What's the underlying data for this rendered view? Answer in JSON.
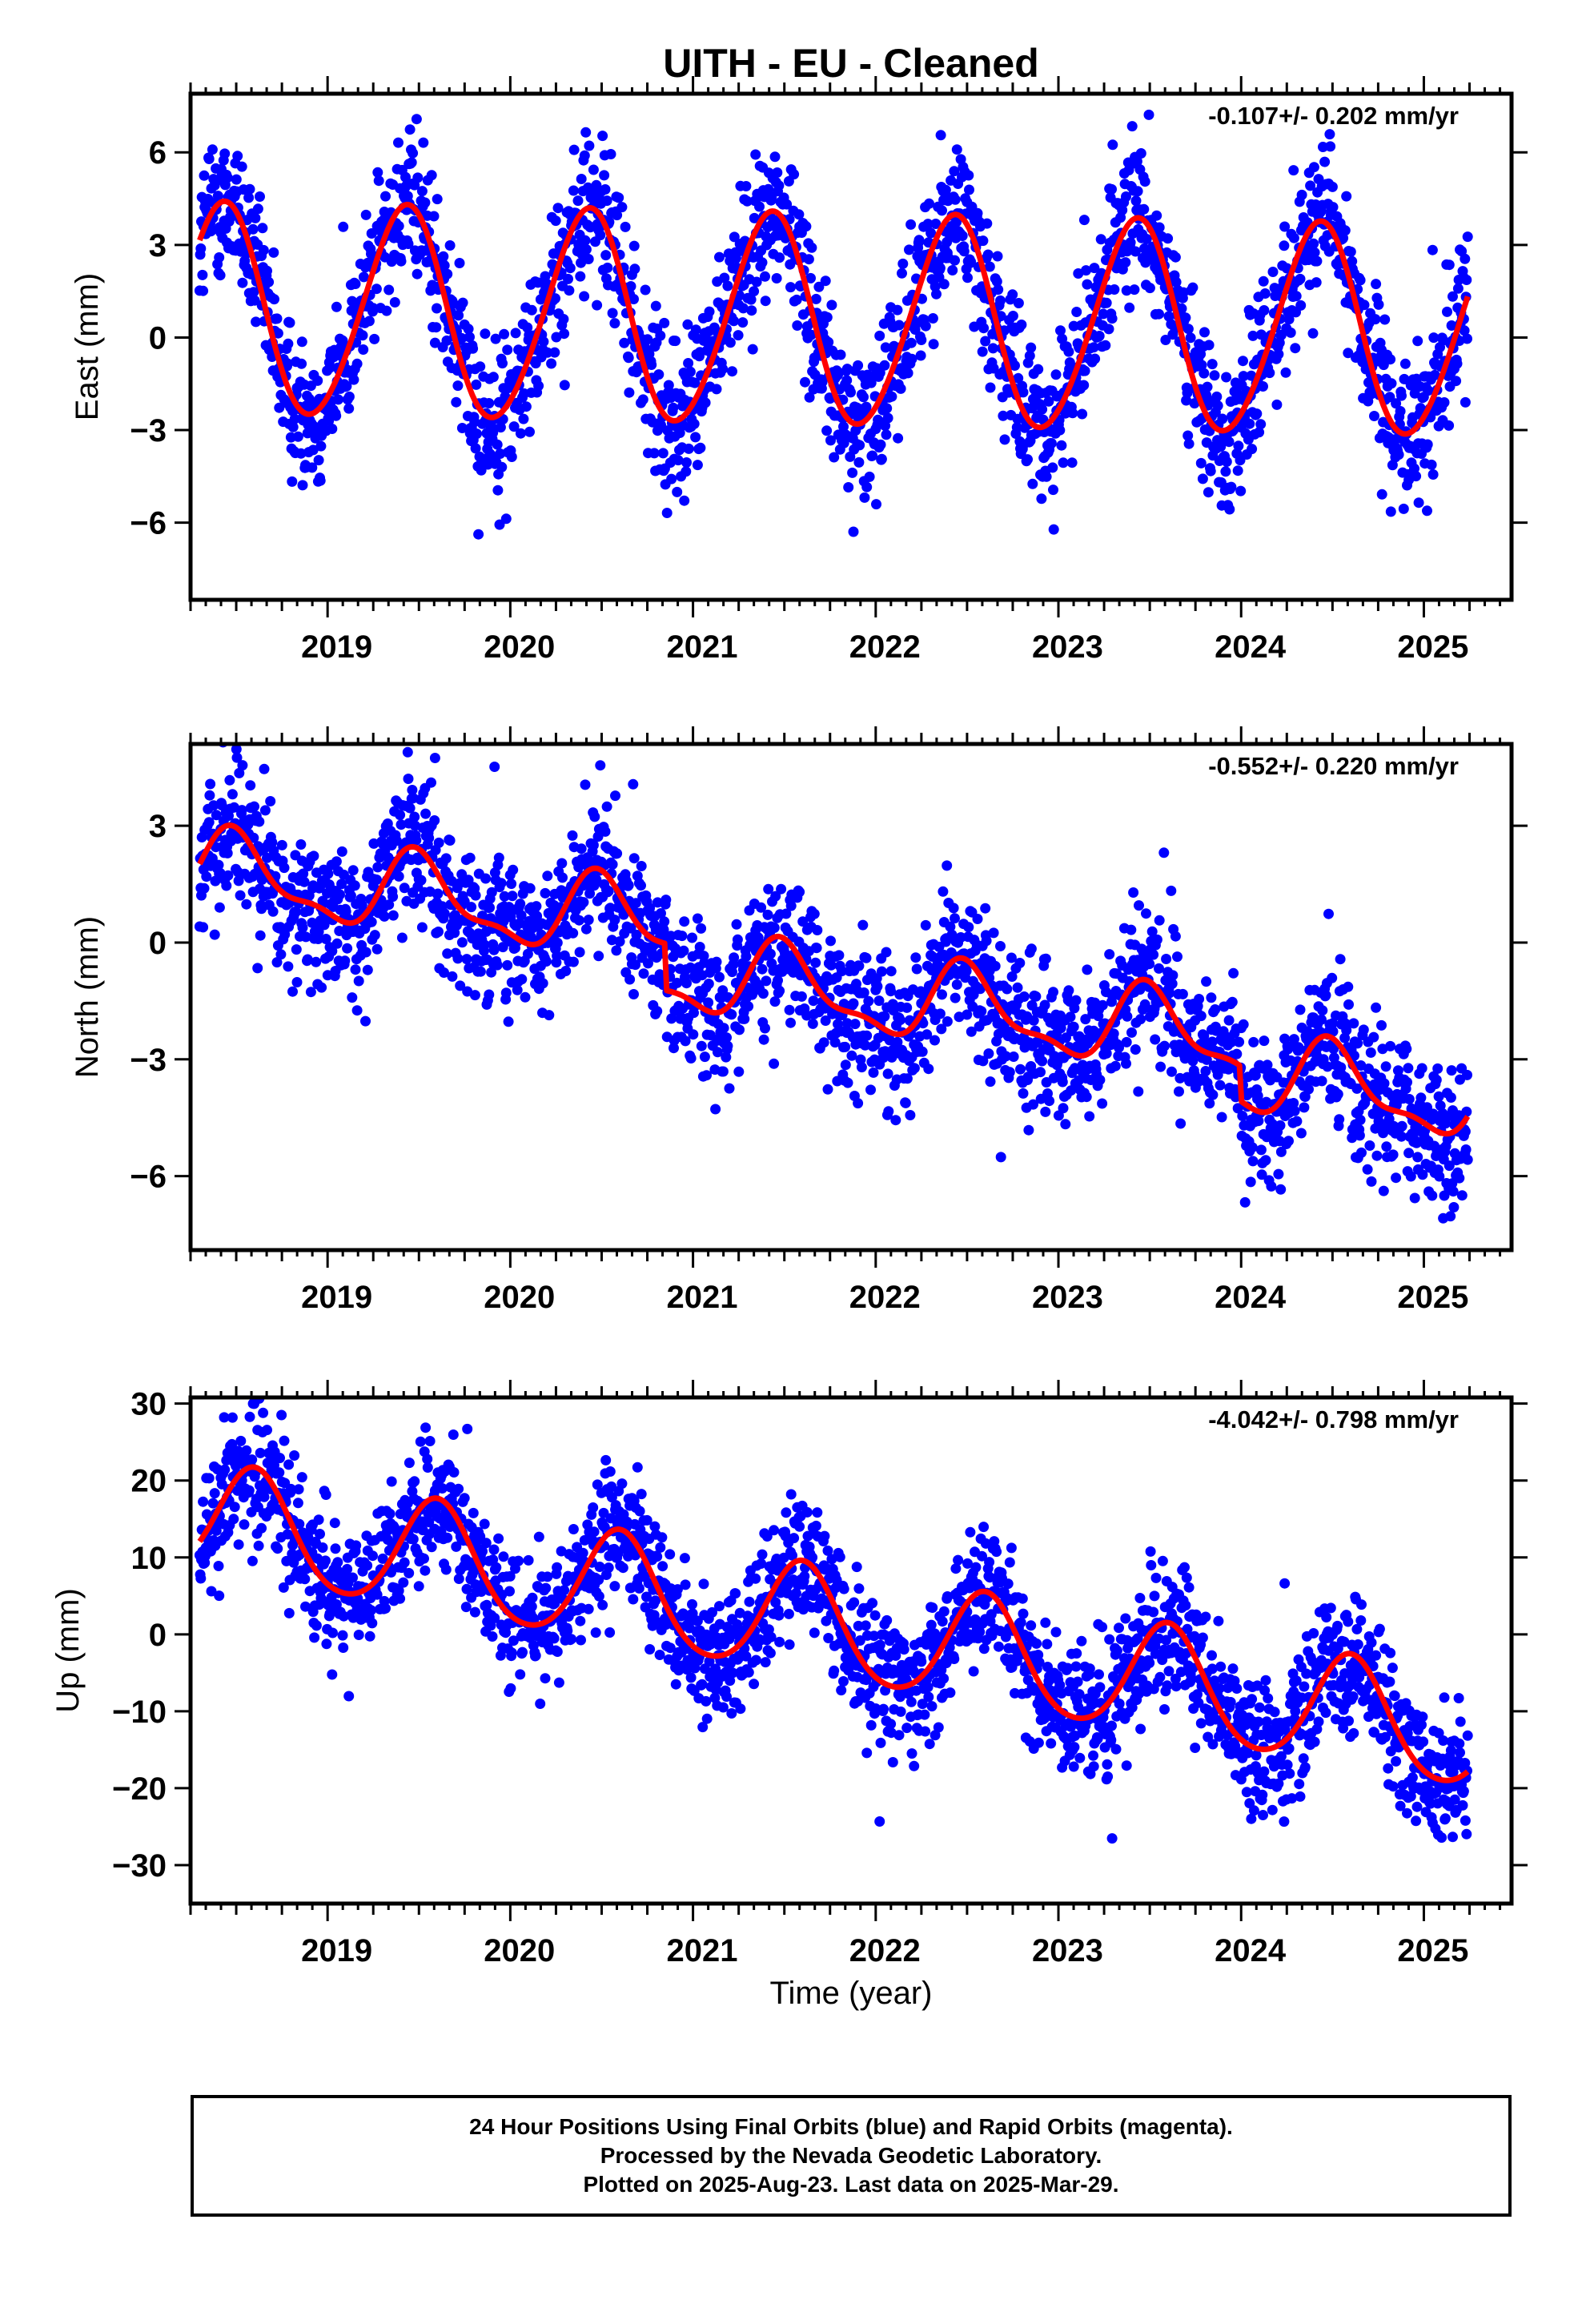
{
  "title": "UITH  - EU - Cleaned",
  "x_axis_label": "Time (year)",
  "colors": {
    "final_orbits": "#0000ff",
    "fit_curve": "#ff0000",
    "frame": "#000000"
  },
  "footer": {
    "line1": "24 Hour Positions Using Final Orbits (blue) and Rapid Orbits (magenta).",
    "line2": "Processed by the Nevada Geodetic Laboratory.",
    "line3": "Plotted on 2025-Aug-23. Last data on 2025-Mar-29."
  },
  "chart_data": [
    {
      "type": "scatter",
      "component": "east",
      "ylabel": "East (mm)",
      "rate_text": "-0.107+/- 0.202 mm/yr",
      "xlim": [
        2018.25,
        2025.48
      ],
      "ylim": [
        -8.5,
        7.9
      ],
      "x_ticks": [
        2019,
        2020,
        2021,
        2022,
        2023,
        2024,
        2025
      ],
      "x_tick_labels": [
        "2019",
        "2020",
        "2021",
        "2022",
        "2023",
        "2024",
        "2025"
      ],
      "y_ticks": [
        6,
        3,
        0,
        -3,
        -6
      ],
      "y_tick_labels": [
        "6",
        "3",
        "0",
        "−3",
        "−6"
      ],
      "grid": false,
      "data_range": [
        2018.3,
        2025.24
      ],
      "fit": {
        "offset": 0.5,
        "trend": -0.107,
        "ref_year": 2021.8,
        "annual_amp": 3.4,
        "annual_peak": 2018.42,
        "semiannual_amp": 0.25,
        "semiannual_peak": 2018.5
      },
      "scatter_sigma": 1.2,
      "n_points": 2280,
      "fit_end_value": 1.6
    },
    {
      "type": "scatter",
      "component": "north",
      "ylabel": "North (mm)",
      "rate_text": "-0.552+/- 0.220 mm/yr",
      "xlim": [
        2018.25,
        2025.48
      ],
      "ylim": [
        -7.9,
        5.1
      ],
      "x_ticks": [
        2019,
        2020,
        2021,
        2022,
        2023,
        2024,
        2025
      ],
      "x_tick_labels": [
        "2019",
        "2020",
        "2021",
        "2022",
        "2023",
        "2024",
        "2025"
      ],
      "y_ticks": [
        3,
        0,
        -3,
        -6
      ],
      "y_tick_labels": [
        "3",
        "0",
        "−3",
        "−6"
      ],
      "grid": false,
      "data_range": [
        2018.3,
        2025.24
      ],
      "fit": {
        "offset": -0.1,
        "trend": -0.552,
        "ref_year": 2021.8,
        "annual_amp": 0.95,
        "annual_peak": 2018.5,
        "semiannual_amp": 0.35,
        "semiannual_peak": 2018.45
      },
      "steps": [
        {
          "year": 2020.85,
          "dy": -1.2
        },
        {
          "year": 2024.0,
          "dy": -0.9
        }
      ],
      "scatter_sigma": 0.9,
      "n_points": 2280
    },
    {
      "type": "scatter",
      "component": "up",
      "ylabel": "Up (mm)",
      "rate_text": "-4.042+/- 0.798 mm/yr",
      "xlim": [
        2018.25,
        2025.48
      ],
      "ylim": [
        -35,
        30.8
      ],
      "x_ticks": [
        2019,
        2020,
        2021,
        2022,
        2023,
        2024,
        2025
      ],
      "x_tick_labels": [
        "2019",
        "2020",
        "2021",
        "2022",
        "2023",
        "2024",
        "2025"
      ],
      "y_ticks": [
        30,
        20,
        10,
        0,
        -10,
        -20,
        -30
      ],
      "y_tick_labels": [
        "30",
        "20",
        "10",
        "0",
        "−10",
        "−20",
        "−30"
      ],
      "grid": false,
      "data_range": [
        2018.3,
        2025.24
      ],
      "fit": {
        "offset": 0.8,
        "trend": -4.042,
        "ref_year": 2021.8,
        "annual_amp": 7.2,
        "annual_peak": 2018.6,
        "semiannual_amp": 0.8,
        "semiannual_peak": 2018.6
      },
      "scatter_sigma": 4.2,
      "n_points": 2280
    }
  ]
}
